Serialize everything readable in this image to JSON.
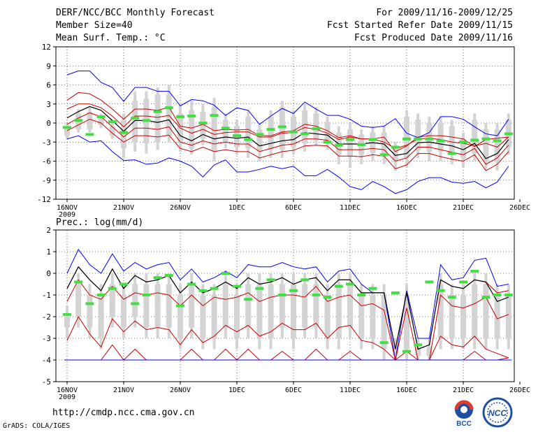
{
  "header": {
    "title": "DERF/NCC/BCC Monthly Forecast",
    "members": "Member Size=40",
    "variable": "Mean Surf. Temp.: °C",
    "period": "For 2009/11/16-2009/12/25",
    "started": "Fcst Started Refer Date 2009/11/15",
    "produced": "Fcst Produced Date 2009/11/16"
  },
  "footer": {
    "url": "http://cmdp.ncc.cma.gov.cn",
    "grads": "GrADS: COLA/IGES"
  },
  "logos": {
    "bcc": "BCC",
    "ncc": "NCC"
  },
  "chart_data": [
    {
      "type": "line",
      "title": "Mean Surf. Temp.: °C",
      "ylabel": "°C",
      "ylim": [
        -12,
        12
      ],
      "yticks": [
        -12,
        -9,
        -6,
        -3,
        0,
        3,
        6,
        9,
        12
      ],
      "xticks": [
        "16NOV",
        "21NOV",
        "26NOV",
        "1DEC",
        "6DEC",
        "11DEC",
        "16DEC",
        "21DEC",
        "26DEC"
      ],
      "xyear": "2009",
      "grid": true,
      "days": 40,
      "series": [
        {
          "name": "max",
          "color": "#0000ff",
          "values": [
            7.6,
            8.2,
            8.2,
            6.4,
            5.6,
            3.4,
            5.6,
            5.6,
            5.0,
            5.0,
            2.7,
            3.7,
            3.5,
            2.8,
            1.2,
            2.4,
            2.0,
            -0.2,
            1.1,
            2.3,
            1.5,
            3.3,
            2.2,
            1.2,
            1.2,
            0.6,
            -0.5,
            -0.7,
            -0.5,
            0.7,
            -1.6,
            -2.3,
            -1.5,
            1.0,
            1.0,
            0.6,
            -0.6,
            -1.7,
            -2.0,
            0.6
          ]
        },
        {
          "name": "p90",
          "color": "#cc0000",
          "values": [
            3.6,
            4.8,
            4.6,
            3.6,
            2.2,
            0.6,
            2.2,
            2.2,
            2.0,
            2.5,
            -0.5,
            -0.8,
            -0.2,
            -1.2,
            -1.0,
            -1.1,
            -1.0,
            -2.0,
            -2.0,
            -1.4,
            -1.2,
            -0.2,
            -0.5,
            -1.2,
            -2.3,
            -2.0,
            -2.5,
            -2.5,
            -2.2,
            -4.5,
            -3.6,
            -2.2,
            -2.0,
            -2.0,
            -2.2,
            -2.5,
            -3.7,
            -2.6,
            -2.4,
            -2.2
          ]
        },
        {
          "name": "p75",
          "color": "#cc0000",
          "values": [
            2.2,
            3.0,
            3.0,
            2.4,
            1.1,
            -0.6,
            1.1,
            1.1,
            0.9,
            1.2,
            -0.8,
            -1.6,
            -1.0,
            -1.8,
            -1.5,
            -1.4,
            -1.4,
            -2.2,
            -2.2,
            -1.6,
            -1.5,
            -0.7,
            -1.0,
            -1.6,
            -2.6,
            -2.2,
            -2.5,
            -2.5,
            -3.0,
            -4.0,
            -3.5,
            -2.5,
            -2.4,
            -2.6,
            -3.0,
            -3.2,
            -3.6,
            -3.2,
            -3.8,
            -2.2
          ]
        },
        {
          "name": "mean",
          "color": "#000000",
          "values": [
            0.8,
            1.8,
            2.6,
            2.0,
            0.4,
            -1.3,
            0.4,
            0.4,
            0.1,
            0.5,
            -2.0,
            -2.8,
            -1.8,
            -2.5,
            -2.2,
            -2.4,
            -2.2,
            -3.6,
            -3.2,
            -2.8,
            -2.6,
            -1.5,
            -1.7,
            -1.9,
            -3.3,
            -3.3,
            -3.3,
            -3.1,
            -3.3,
            -5.1,
            -4.8,
            -3.1,
            -3.0,
            -3.3,
            -3.6,
            -4.2,
            -3.2,
            -5.6,
            -4.8,
            -2.6
          ]
        },
        {
          "name": "p25",
          "color": "#cc0000",
          "values": [
            -0.2,
            0.8,
            1.6,
            1.0,
            -0.6,
            -2.2,
            -0.8,
            -0.8,
            -1.0,
            -0.6,
            -3.0,
            -3.5,
            -2.8,
            -3.3,
            -3.0,
            -3.3,
            -3.3,
            -4.5,
            -4.0,
            -3.5,
            -3.3,
            -2.5,
            -2.5,
            -2.7,
            -4.2,
            -4.2,
            -4.2,
            -4.0,
            -4.2,
            -6.0,
            -5.5,
            -3.8,
            -3.8,
            -4.2,
            -4.6,
            -5.0,
            -4.0,
            -6.5,
            -5.5,
            -3.5
          ]
        },
        {
          "name": "p10",
          "color": "#cc0000",
          "values": [
            -1.2,
            -0.3,
            0.6,
            0.0,
            -1.6,
            -3.0,
            -2.0,
            -2.0,
            -2.2,
            -1.9,
            -4.0,
            -4.5,
            -3.8,
            -4.5,
            -4.2,
            -4.5,
            -4.5,
            -5.5,
            -5.0,
            -4.5,
            -4.3,
            -3.6,
            -3.5,
            -3.6,
            -5.2,
            -5.2,
            -5.3,
            -5.0,
            -5.2,
            -7.2,
            -6.6,
            -4.8,
            -4.8,
            -5.3,
            -5.7,
            -6.0,
            -5.0,
            -7.5,
            -6.5,
            -4.5
          ]
        },
        {
          "name": "min",
          "color": "#0000ff",
          "values": [
            -2.5,
            -2.0,
            -3.0,
            -2.8,
            -4.5,
            -5.9,
            -5.8,
            -6.5,
            -6.3,
            -5.5,
            -6.0,
            -6.8,
            -8.5,
            -6.6,
            -5.8,
            -7.7,
            -7.7,
            -7.3,
            -6.8,
            -7.2,
            -6.8,
            -8.3,
            -8.3,
            -7.3,
            -8.5,
            -10.0,
            -10.5,
            -9.2,
            -10.0,
            -11.1,
            -10.5,
            -9.2,
            -8.6,
            -8.6,
            -9.3,
            -9.5,
            -9.2,
            -10.2,
            -9.3,
            -6.8
          ]
        },
        {
          "name": "observed",
          "color": "#44dd44",
          "values": [
            -0.7,
            0.4,
            -1.8,
            1.0,
            0.2,
            -1.5,
            0.8,
            0.4,
            1.8,
            2.4,
            1.0,
            1.1,
            0.0,
            1.2,
            -0.8,
            -2.0,
            -2.6,
            -1.8,
            -1.0,
            -0.6,
            -1.4,
            -1.7,
            -0.9,
            -3.0,
            -3.5,
            -2.6,
            -3.4,
            -2.6,
            -5.0,
            -3.8,
            -2.5,
            -2.5,
            -2.5,
            -2.8,
            -4.8,
            -3.0,
            -2.7,
            -2.5,
            -2.8,
            -1.7
          ]
        }
      ],
      "box_p5": [
        -2.5,
        -1.5,
        -1.5,
        -0.8,
        -2.5,
        -5.5,
        -4.5,
        -4.8,
        -4.2,
        -3.0,
        -4.5,
        -5.0,
        -3.5,
        -6.0,
        -4.0,
        -5.0,
        -5.5,
        -6.0,
        -5.5,
        -5.5,
        -5.0,
        -4.5,
        -3.5,
        -4.2,
        -6.5,
        -7.0,
        -6.5,
        -6.0,
        -6.5,
        -7.5,
        -7.0,
        -5.5,
        -6.0,
        -6.0,
        -6.5,
        -7.0,
        -6.0,
        -7.5,
        -7.5,
        -5.0
      ],
      "box_p95": [
        0.0,
        2.2,
        2.5,
        1.5,
        0.0,
        1.5,
        5.0,
        5.0,
        5.6,
        6.0,
        3.0,
        3.5,
        3.0,
        4.0,
        1.5,
        0.5,
        2.0,
        -0.2,
        2.0,
        3.5,
        2.0,
        3.0,
        2.5,
        1.0,
        -0.5,
        0.0,
        -1.0,
        -0.5,
        -0.5,
        -3.0,
        2.0,
        1.5,
        1.0,
        1.0,
        0.5,
        -1.5,
        1.5,
        0.0,
        0.0,
        1.5
      ],
      "box_iq_lo": [
        -2.0,
        -1.0,
        -1.0,
        -0.3,
        -2.0,
        -4.0,
        -3.0,
        -3.2,
        -3.0,
        -2.0,
        -3.2,
        -4.0,
        -2.5,
        -4.5,
        -3.0,
        -3.8,
        -4.0,
        -4.5,
        -4.2,
        -4.2,
        -3.8,
        -3.2,
        -2.8,
        -3.2,
        -5.0,
        -5.3,
        -5.0,
        -4.7,
        -5.0,
        -6.2,
        -5.5,
        -4.3,
        -4.5,
        -4.5,
        -5.0,
        -5.5,
        -4.8,
        -6.2,
        -6.0,
        -3.8
      ],
      "box_iq_hi": [
        -0.5,
        1.5,
        1.8,
        0.9,
        -0.5,
        0.5,
        3.5,
        3.8,
        4.5,
        4.5,
        1.5,
        2.0,
        1.8,
        2.5,
        0.5,
        -0.5,
        1.0,
        -1.0,
        1.0,
        2.5,
        1.0,
        2.0,
        1.5,
        0.2,
        -1.5,
        -1.0,
        -1.8,
        -1.5,
        -1.5,
        -4.0,
        1.0,
        0.5,
        0.0,
        0.0,
        -0.5,
        -2.5,
        0.5,
        -1.0,
        -1.0,
        0.5
      ]
    },
    {
      "type": "line",
      "title": "Prec.: log(mm/d)",
      "ylabel": "log(mm/d)",
      "ylim": [
        -5,
        2
      ],
      "yticks": [
        -5,
        -4,
        -3,
        -2,
        -1,
        0,
        1,
        2
      ],
      "xticks": [
        "16NOV",
        "21NOV",
        "26NOV",
        "1DEC",
        "6DEC",
        "11DEC",
        "16DEC",
        "21DEC",
        "26DEC"
      ],
      "xyear": "2009",
      "grid": true,
      "days": 40,
      "series": [
        {
          "name": "max",
          "color": "#0000ff",
          "values": [
            0.0,
            1.1,
            0.4,
            0.0,
            0.9,
            0.1,
            0.5,
            0.2,
            0.4,
            0.5,
            -0.3,
            0.2,
            -0.4,
            -0.2,
            0.1,
            -0.2,
            0.4,
            0.3,
            0.3,
            0.5,
            0.3,
            0.2,
            0.3,
            -0.4,
            0.1,
            0.2,
            -0.5,
            -0.9,
            -0.9,
            -4.0,
            -0.8,
            -3.0,
            -3.0,
            0.4,
            -0.3,
            -0.2,
            0.6,
            0.7,
            -0.6,
            -0.5
          ]
        },
        {
          "name": "p90",
          "color": "#cc0000",
          "values": [
            -0.7,
            0.3,
            -0.3,
            -0.8,
            0.2,
            -0.7,
            -0.1,
            -0.4,
            -0.3,
            -0.1,
            -0.9,
            -0.4,
            -0.9,
            -0.7,
            -0.4,
            -0.7,
            -0.2,
            -0.5,
            -0.4,
            -0.2,
            -0.5,
            -0.3,
            -0.2,
            -0.8,
            -0.3,
            -0.3,
            -0.9,
            -0.9,
            -0.9,
            -3.5,
            -0.9,
            -3.5,
            -3.3,
            -0.3,
            -0.6,
            -0.7,
            -0.3,
            -0.4,
            -0.9,
            -0.8
          ]
        },
        {
          "name": "mean",
          "color": "#000000",
          "values": [
            -0.7,
            0.3,
            -0.3,
            -0.8,
            0.2,
            -0.7,
            -0.1,
            -0.4,
            -0.3,
            -0.1,
            -0.9,
            -0.4,
            -0.9,
            -0.7,
            -0.4,
            -0.7,
            -0.2,
            -0.5,
            -0.4,
            -0.2,
            -0.5,
            -0.3,
            -0.2,
            -0.8,
            -0.3,
            -0.3,
            -0.9,
            -0.9,
            -0.9,
            -3.5,
            -0.9,
            -3.5,
            -3.3,
            -0.3,
            -0.6,
            -0.7,
            -0.3,
            -0.4,
            -1.3,
            -1.1
          ]
        },
        {
          "name": "p75",
          "color": "#cc0000",
          "values": [
            -1.3,
            -0.3,
            -1.0,
            -1.2,
            -0.6,
            -1.2,
            -0.9,
            -1.0,
            -0.9,
            -1.0,
            -1.5,
            -1.0,
            -1.5,
            -1.1,
            -1.2,
            -1.1,
            -0.9,
            -1.3,
            -1.1,
            -1.0,
            -1.0,
            -1.1,
            -0.6,
            -1.3,
            -1.1,
            -1.0,
            -1.5,
            -1.4,
            -1.7,
            -4.0,
            -1.6,
            -4.0,
            -4.0,
            -1.0,
            -1.5,
            -1.6,
            -1.4,
            -1.1,
            -2.1,
            -1.9
          ]
        },
        {
          "name": "p25",
          "color": "#cc0000",
          "values": [
            -3.1,
            -2.0,
            -2.8,
            -3.4,
            -2.1,
            -2.7,
            -2.2,
            -2.6,
            -2.5,
            -2.6,
            -3.3,
            -2.6,
            -3.2,
            -2.9,
            -2.4,
            -2.7,
            -2.4,
            -2.9,
            -2.7,
            -2.3,
            -2.6,
            -2.6,
            -2.3,
            -3.0,
            -2.5,
            -2.4,
            -3.1,
            -3.2,
            -3.5,
            -4.0,
            -3.6,
            -4.0,
            -4.0,
            -2.9,
            -3.3,
            -3.4,
            -2.9,
            -3.5,
            -3.7,
            -3.9
          ]
        },
        {
          "name": "p10",
          "color": "#cc0000",
          "values": [
            -4.0,
            -4.0,
            -4.0,
            -4.0,
            -3.3,
            -4.0,
            -3.5,
            -4.0,
            -4.0,
            -4.0,
            -4.0,
            -3.5,
            -4.0,
            -4.0,
            -3.5,
            -4.0,
            -3.5,
            -4.0,
            -4.0,
            -3.6,
            -4.0,
            -4.0,
            -3.5,
            -4.0,
            -4.0,
            -3.6,
            -4.0,
            -4.0,
            -4.0,
            -4.0,
            -4.0,
            -4.0,
            -4.0,
            -4.0,
            -4.0,
            -4.0,
            -3.6,
            -4.0,
            -4.0,
            -3.9
          ]
        },
        {
          "name": "min",
          "color": "#0000ff",
          "values": [
            -4.0,
            -4.0,
            -4.0,
            -4.0,
            -4.0,
            -4.0,
            -4.0,
            -4.0,
            -4.0,
            -4.0,
            -4.0,
            -4.0,
            -4.0,
            -4.0,
            -4.0,
            -4.0,
            -4.0,
            -4.0,
            -4.0,
            -4.0,
            -4.0,
            -4.0,
            -4.0,
            -4.0,
            -4.0,
            -4.0,
            -4.0,
            -4.0,
            -4.0,
            -4.0,
            -4.0,
            -4.0,
            -4.0,
            -4.0,
            -4.0,
            -4.0,
            -4.0,
            -4.0,
            -4.0,
            -4.0
          ]
        },
        {
          "name": "observed",
          "color": "#44dd44",
          "values": [
            -1.9,
            -0.4,
            -1.4,
            -1.0,
            -0.7,
            -0.5,
            -1.4,
            -1.0,
            -0.2,
            -0.1,
            -1.5,
            -0.5,
            -0.8,
            -0.7,
            0.0,
            -0.6,
            -1.2,
            -0.7,
            -0.3,
            -1.0,
            -0.8,
            -0.3,
            -1.0,
            -1.1,
            -0.6,
            -0.5,
            -1.0,
            -0.7,
            -3.2,
            -0.9,
            -3.6,
            -3.3,
            -0.4,
            -0.8,
            -1.1,
            -0.4,
            0.1,
            -1.1,
            -1.0,
            -1.0
          ]
        }
      ],
      "box_p5": [
        -3.0,
        -2.5,
        -3.0,
        -3.5,
        -2.5,
        -3.0,
        -2.5,
        -3.0,
        -3.0,
        -3.0,
        -3.5,
        -3.0,
        -3.5,
        -3.5,
        -3.0,
        -3.5,
        -3.0,
        -3.5,
        -3.5,
        -3.0,
        -3.5,
        -3.0,
        -3.0,
        -3.5,
        -3.5,
        -3.0,
        -3.5,
        -3.5,
        -4.0,
        -4.0,
        -4.0,
        -4.0,
        -4.0,
        -3.5,
        -3.5,
        -3.5,
        -3.5,
        -3.5,
        -3.5,
        -3.5
      ],
      "box_p95": [
        -1.5,
        0.0,
        -0.5,
        -0.5,
        0.0,
        -0.5,
        0.0,
        0.0,
        0.0,
        0.0,
        -0.5,
        0.0,
        -0.5,
        -0.5,
        0.0,
        -0.5,
        0.0,
        0.0,
        0.0,
        0.0,
        0.0,
        0.0,
        0.0,
        -0.5,
        0.0,
        0.0,
        -0.5,
        -0.5,
        -0.5,
        -3.0,
        -0.5,
        -3.0,
        -3.0,
        0.0,
        -0.5,
        -0.5,
        0.0,
        0.0,
        -0.5,
        -0.5
      ],
      "box_iq_lo": [
        -2.5,
        -2.0,
        -2.5,
        -3.0,
        -2.0,
        -2.5,
        -2.0,
        -2.5,
        -2.5,
        -2.5,
        -3.0,
        -2.5,
        -3.0,
        -3.0,
        -2.5,
        -3.0,
        -2.5,
        -3.0,
        -3.0,
        -2.5,
        -3.0,
        -2.5,
        -2.5,
        -3.0,
        -3.0,
        -2.5,
        -3.0,
        -3.0,
        -3.5,
        -3.8,
        -3.5,
        -3.8,
        -3.8,
        -3.0,
        -3.0,
        -3.0,
        -3.0,
        -3.0,
        -3.0,
        -3.0
      ],
      "box_iq_hi": [
        -2.0,
        -0.5,
        -1.0,
        -1.0,
        -0.5,
        -1.0,
        -0.5,
        -0.5,
        -0.5,
        -0.5,
        -1.0,
        -0.5,
        -1.0,
        -1.0,
        -0.5,
        -1.0,
        -0.5,
        -0.5,
        -0.5,
        -0.5,
        -0.5,
        -0.5,
        -0.5,
        -1.0,
        -0.5,
        -0.5,
        -1.0,
        -1.0,
        -1.0,
        -3.4,
        -1.0,
        -3.4,
        -3.4,
        -0.5,
        -1.0,
        -1.0,
        -0.5,
        -0.5,
        -1.0,
        -1.0
      ]
    }
  ]
}
